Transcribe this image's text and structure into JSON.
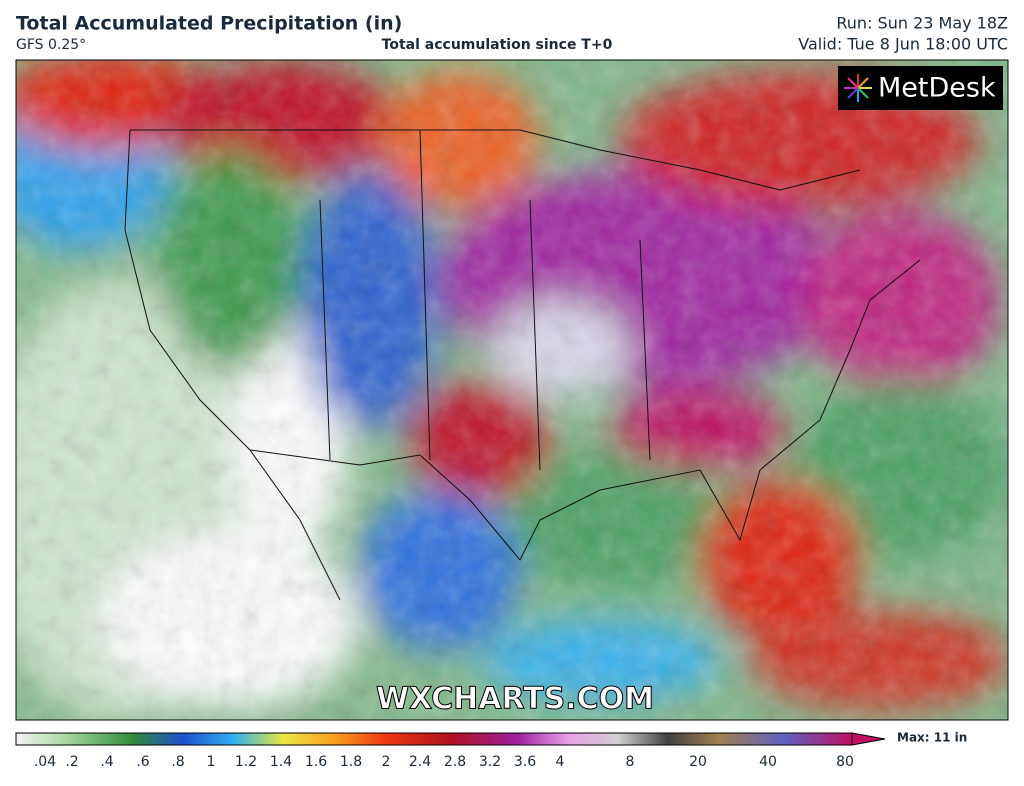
{
  "header": {
    "title": "Total Accumulated Precipitation (in)",
    "model": "GFS 0.25°",
    "subtitle": "Total accumulation since T+0",
    "run": "Run: Sun 23 May 18Z",
    "valid": "Valid: Tue 8 Jun 18:00 UTC"
  },
  "logo": "MetDesk",
  "watermark": "WXCHARTS.COM",
  "legend": {
    "ticks": [
      ".04",
      ".2",
      ".4",
      ".6",
      ".8",
      "1",
      "1.2",
      "1.4",
      "1.6",
      "1.8",
      "2",
      "2.4",
      "2.8",
      "3.2",
      "3.6",
      "4",
      "8",
      "20",
      "40",
      "80"
    ],
    "max_label": "Max: 11 in"
  }
}
